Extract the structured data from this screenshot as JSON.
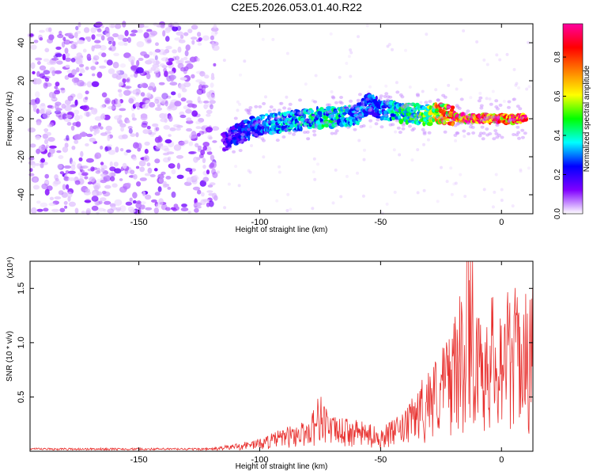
{
  "title": "C2E5.2026.053.01.40.R22",
  "chart_data": [
    {
      "type": "heatmap",
      "xlabel": "Height of straight line (km)",
      "ylabel": "Frequency (Hz)",
      "xlim": [
        -195,
        13
      ],
      "ylim": [
        -50,
        50
      ],
      "x_ticks": [
        -150,
        -100,
        -50,
        0
      ],
      "y_ticks": [
        -40,
        -20,
        0,
        20,
        40
      ],
      "colorbar": {
        "label": "Normalized spectral amplitude",
        "range": [
          0.0,
          0.97
        ],
        "ticks": [
          "0.0",
          "0.2",
          "0.4",
          "0.6",
          "0.8"
        ],
        "colors": [
          "#ffffff",
          "#8000ff",
          "#0000ff",
          "#00ffff",
          "#00ff00",
          "#ffff00",
          "#ff8000",
          "#ff0000",
          "#ff00a0"
        ]
      },
      "noise_region": {
        "x_range": [
          -195,
          -118
        ],
        "freq_range": [
          -50,
          50
        ],
        "amplitude": [
          0.02,
          0.15
        ]
      },
      "signal_track": {
        "x": [
          -115,
          -110,
          -100,
          -90,
          -80,
          -70,
          -60,
          -55,
          -50,
          -40,
          -30,
          -25,
          -20,
          -10,
          0,
          10
        ],
        "freq": [
          -12,
          -8,
          -3,
          -2,
          0,
          1,
          2,
          8,
          5,
          3,
          2,
          3,
          1,
          0,
          0,
          0
        ],
        "amplitude": [
          0.15,
          0.25,
          0.3,
          0.38,
          0.4,
          0.42,
          0.35,
          0.3,
          0.32,
          0.45,
          0.55,
          0.8,
          0.9,
          0.92,
          0.95,
          0.9
        ]
      }
    },
    {
      "type": "line",
      "xlabel": "Height of straight line (km)",
      "ylabel": "SNR (10 * v/v)",
      "y_multiplier": "(x10⁴)",
      "xlim": [
        -195,
        13
      ],
      "ylim": [
        0,
        1.75
      ],
      "x_ticks": [
        -150,
        -100,
        -50,
        0
      ],
      "y_ticks": [
        "0.5",
        "1.0",
        "1.5"
      ],
      "color": "#e8302e",
      "series": [
        {
          "x": [
            -195,
            -150,
            -120,
            -110,
            -100,
            -90,
            -80,
            -75,
            -70,
            -60,
            -50,
            -45,
            -40,
            -35,
            -30,
            -25,
            -20,
            -17,
            -15,
            -14,
            -10,
            -5,
            0,
            5,
            10,
            13
          ],
          "y": [
            0.02,
            0.02,
            0.02,
            0.05,
            0.08,
            0.15,
            0.2,
            0.38,
            0.22,
            0.2,
            0.15,
            0.2,
            0.25,
            0.4,
            0.55,
            0.65,
            0.85,
            1.0,
            0.8,
            1.75,
            0.85,
            1.0,
            1.0,
            1.05,
            1.0,
            1.1
          ]
        }
      ]
    }
  ]
}
